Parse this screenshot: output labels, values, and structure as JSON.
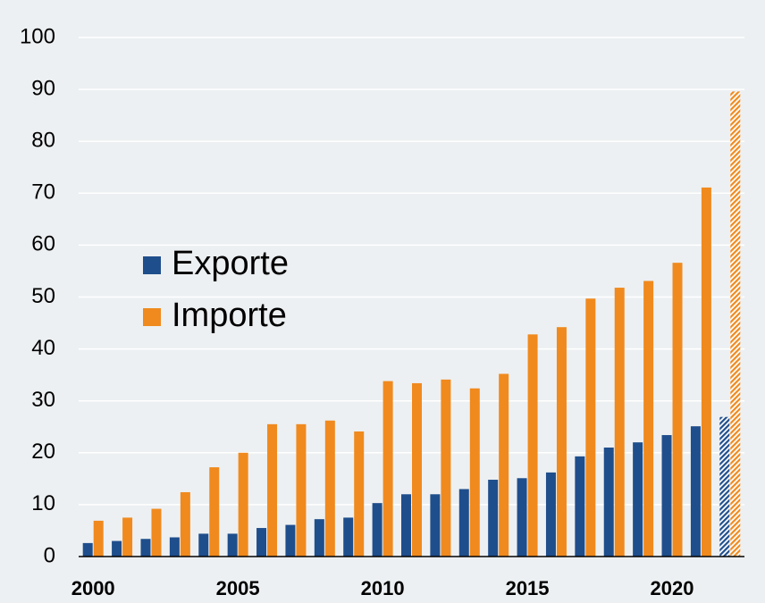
{
  "chart_data": {
    "type": "bar",
    "categories": [
      "2000",
      null,
      null,
      null,
      null,
      "2005",
      null,
      null,
      null,
      null,
      "2010",
      null,
      null,
      null,
      null,
      "2015",
      null,
      null,
      null,
      null,
      "2020",
      null,
      null
    ],
    "series": [
      {
        "name": "Exporte",
        "color": "#1f4e8c",
        "values": [
          2.6,
          3.0,
          3.4,
          3.7,
          4.4,
          4.4,
          5.5,
          6.1,
          7.2,
          7.5,
          10.3,
          12.0,
          12.0,
          13.0,
          14.8,
          15.1,
          16.2,
          19.3,
          21.0,
          22.0,
          23.4,
          25.1,
          26.9
        ]
      },
      {
        "name": "Importe",
        "color": "#f08a1e",
        "values": [
          6.9,
          7.5,
          9.2,
          12.4,
          17.2,
          20.0,
          25.5,
          25.5,
          26.2,
          24.1,
          33.8,
          33.4,
          34.1,
          32.4,
          35.2,
          42.8,
          44.2,
          49.7,
          51.8,
          53.1,
          56.6,
          71.1,
          89.6
        ]
      }
    ],
    "hatched_categories": [
      22
    ],
    "ylim": [
      0,
      100
    ],
    "yticks": [
      0,
      10,
      20,
      30,
      40,
      50,
      60,
      70,
      80,
      90,
      100
    ],
    "grid": true,
    "legend": "center left"
  }
}
